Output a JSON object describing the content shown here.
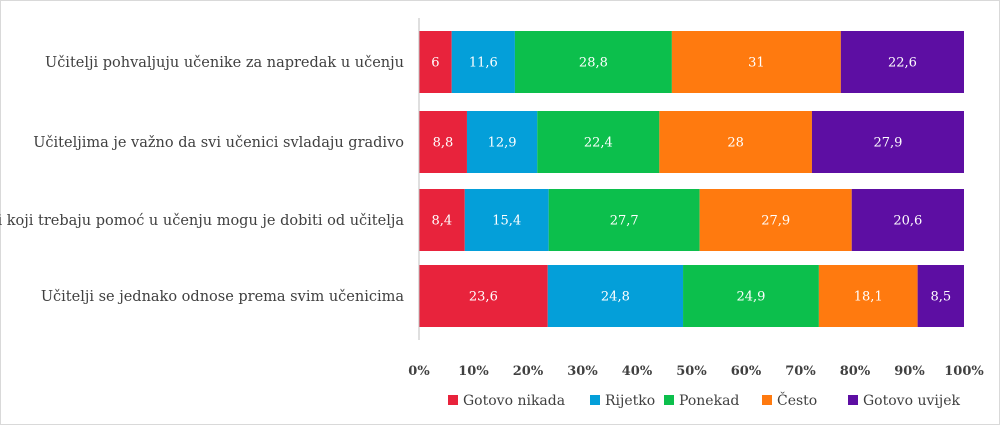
{
  "chart_data": {
    "type": "bar",
    "orientation": "horizontal",
    "stacked": "percent",
    "categories": [
      "Učitelji pohvaljuju učenike za napredak u učenju",
      "Učiteljima je važno da svi učenici svladaju gradivo",
      "Učenici koji trebaju pomoć u učenju mogu je dobiti od učitelja",
      "Učitelji se jednako odnose prema svim učenicima"
    ],
    "series": [
      {
        "name": "Gotovo nikada",
        "color": "#e8233c",
        "values": [
          6,
          8.8,
          8.4,
          23.6
        ],
        "labels": [
          "6",
          "8,8",
          "8,4",
          "23,6"
        ]
      },
      {
        "name": "Rijetko",
        "color": "#049fd9",
        "values": [
          11.6,
          12.9,
          15.4,
          24.8
        ],
        "labels": [
          "11,6",
          "12,9",
          "15,4",
          "24,8"
        ]
      },
      {
        "name": "Ponekad",
        "color": "#0cbf4c",
        "values": [
          28.8,
          22.4,
          27.7,
          24.9
        ],
        "labels": [
          "28,8",
          "22,4",
          "27,7",
          "24,9"
        ]
      },
      {
        "name": "Često",
        "color": "#ff7a0f",
        "values": [
          31,
          28,
          27.9,
          18.1
        ],
        "labels": [
          "31",
          "28",
          "27,9",
          "18,1"
        ]
      },
      {
        "name": "Gotovo uvijek",
        "color": "#5d0ea3",
        "values": [
          22.6,
          27.9,
          20.6,
          8.5
        ],
        "labels": [
          "22,6",
          "27,9",
          "20,6",
          "8,5"
        ]
      }
    ],
    "xlim": [
      0,
      100
    ],
    "x_ticks": [
      "0%",
      "10%",
      "20%",
      "30%",
      "40%",
      "50%",
      "60%",
      "70%",
      "80%",
      "90%",
      "100%"
    ],
    "legend": "bottom",
    "grid": false,
    "title": "",
    "xlabel": "",
    "ylabel": ""
  }
}
